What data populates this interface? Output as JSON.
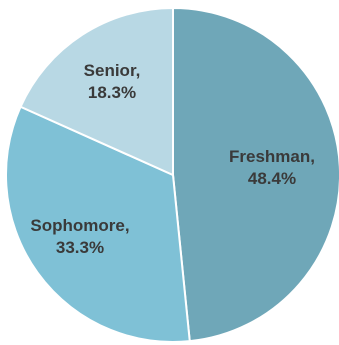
{
  "chart_data": {
    "type": "pie",
    "title": "",
    "start_angle_deg": 0,
    "direction": "clockwise",
    "slices": [
      {
        "label": "Freshman,",
        "value_text": "48.4%",
        "value": 48.4,
        "color": "#6fa7b8"
      },
      {
        "label": "Sophomore,",
        "value_text": "33.3%",
        "value": 33.3,
        "color": "#7fc1d6"
      },
      {
        "label": "Senior,",
        "value_text": "18.3%",
        "value": 18.3,
        "color": "#b8d8e4"
      }
    ],
    "legend": "none",
    "data_labels": "inside"
  }
}
